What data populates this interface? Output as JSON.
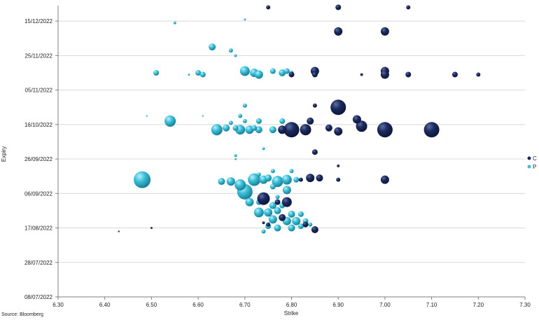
{
  "source_note": "Source: Bloomberg",
  "colors": {
    "C": "#1b2a5e",
    "P": "#3cc0d8",
    "grid": "#d9d9d9",
    "axis": "#7f7f7f"
  },
  "chart_data": {
    "type": "scatter",
    "bubble": true,
    "xlabel": "Strike",
    "ylabel": "Expiry",
    "xlim": [
      6.3,
      7.3
    ],
    "ylim": [
      "2022-07-08",
      "2022-12-24"
    ],
    "x_ticks": [
      "6.30",
      "6.40",
      "6.50",
      "6.60",
      "6.70",
      "6.80",
      "6.90",
      "7.00",
      "7.10",
      "7.20",
      "7.30"
    ],
    "y_ticks": [
      {
        "date": "2022-07-08",
        "label": "08/07/2022"
      },
      {
        "date": "2022-07-28",
        "label": "28/07/2022"
      },
      {
        "date": "2022-08-17",
        "label": "17/08/2022"
      },
      {
        "date": "2022-09-06",
        "label": "06/09/2022"
      },
      {
        "date": "2022-09-26",
        "label": "26/09/2022"
      },
      {
        "date": "2022-10-16",
        "label": "16/10/2022"
      },
      {
        "date": "2022-11-05",
        "label": "05/11/2022"
      },
      {
        "date": "2022-11-25",
        "label": "25/11/2022"
      },
      {
        "date": "2022-12-15",
        "label": "15/12/2022"
      }
    ],
    "grid": "horizontal",
    "legend_position": "right",
    "series": [
      {
        "name": "C",
        "points": [
          {
            "x": 6.75,
            "y": "2022-12-23",
            "s": 3
          },
          {
            "x": 6.9,
            "y": "2022-12-23",
            "s": 4
          },
          {
            "x": 7.05,
            "y": "2022-12-23",
            "s": 3
          },
          {
            "x": 6.9,
            "y": "2022-12-09",
            "s": 6
          },
          {
            "x": 7.0,
            "y": "2022-12-09",
            "s": 6
          },
          {
            "x": 6.8,
            "y": "2022-11-14",
            "s": 4
          },
          {
            "x": 6.85,
            "y": "2022-11-16",
            "s": 6
          },
          {
            "x": 6.85,
            "y": "2022-11-14",
            "s": 4
          },
          {
            "x": 6.95,
            "y": "2022-11-14",
            "s": 2
          },
          {
            "x": 7.0,
            "y": "2022-11-16",
            "s": 6
          },
          {
            "x": 7.0,
            "y": "2022-11-14",
            "s": 6
          },
          {
            "x": 7.05,
            "y": "2022-11-14",
            "s": 4
          },
          {
            "x": 7.15,
            "y": "2022-11-14",
            "s": 4
          },
          {
            "x": 7.2,
            "y": "2022-11-14",
            "s": 3
          },
          {
            "x": 6.85,
            "y": "2022-10-27",
            "s": 3
          },
          {
            "x": 6.9,
            "y": "2022-10-26",
            "s": 11
          },
          {
            "x": 6.84,
            "y": "2022-10-18",
            "s": 5
          },
          {
            "x": 6.94,
            "y": "2022-10-19",
            "s": 6
          },
          {
            "x": 6.95,
            "y": "2022-10-15",
            "s": 8
          },
          {
            "x": 7.0,
            "y": "2022-10-13",
            "s": 11
          },
          {
            "x": 7.1,
            "y": "2022-10-13",
            "s": 11
          },
          {
            "x": 6.8,
            "y": "2022-10-13",
            "s": 11
          },
          {
            "x": 6.78,
            "y": "2022-10-13",
            "s": 6
          },
          {
            "x": 6.83,
            "y": "2022-10-13",
            "s": 8
          },
          {
            "x": 6.88,
            "y": "2022-10-14",
            "s": 5
          },
          {
            "x": 6.9,
            "y": "2022-10-12",
            "s": 6
          },
          {
            "x": 6.85,
            "y": "2022-09-30",
            "s": 4
          },
          {
            "x": 6.9,
            "y": "2022-09-22",
            "s": 2
          },
          {
            "x": 6.84,
            "y": "2022-09-15",
            "s": 6
          },
          {
            "x": 6.86,
            "y": "2022-09-15",
            "s": 5
          },
          {
            "x": 6.9,
            "y": "2022-09-14",
            "s": 3
          },
          {
            "x": 7.0,
            "y": "2022-09-14",
            "s": 6
          },
          {
            "x": 6.82,
            "y": "2022-09-14",
            "s": 3
          },
          {
            "x": 6.74,
            "y": "2022-09-03",
            "s": 9
          },
          {
            "x": 6.79,
            "y": "2022-09-01",
            "s": 7
          },
          {
            "x": 6.77,
            "y": "2022-09-01",
            "s": 4
          },
          {
            "x": 6.78,
            "y": "2022-08-23",
            "s": 5
          },
          {
            "x": 6.83,
            "y": "2022-08-19",
            "s": 4
          },
          {
            "x": 6.85,
            "y": "2022-08-16",
            "s": 5
          },
          {
            "x": 6.75,
            "y": "2022-08-19",
            "s": 3
          },
          {
            "x": 6.74,
            "y": "2022-08-20",
            "s": 2
          },
          {
            "x": 6.5,
            "y": "2022-08-17",
            "s": 1.5
          },
          {
            "x": 6.43,
            "y": "2022-08-15",
            "s": 1.2
          }
        ]
      },
      {
        "name": "P",
        "points": [
          {
            "x": 6.55,
            "y": "2022-12-14",
            "s": 2
          },
          {
            "x": 6.7,
            "y": "2022-12-16",
            "s": 1.5
          },
          {
            "x": 6.63,
            "y": "2022-11-30",
            "s": 5
          },
          {
            "x": 6.67,
            "y": "2022-11-28",
            "s": 3
          },
          {
            "x": 6.68,
            "y": "2022-11-25",
            "s": 2
          },
          {
            "x": 6.51,
            "y": "2022-11-15",
            "s": 4
          },
          {
            "x": 6.58,
            "y": "2022-11-14",
            "s": 1.5
          },
          {
            "x": 6.6,
            "y": "2022-11-15",
            "s": 4
          },
          {
            "x": 6.61,
            "y": "2022-11-14",
            "s": 4
          },
          {
            "x": 6.7,
            "y": "2022-11-16",
            "s": 7
          },
          {
            "x": 6.72,
            "y": "2022-11-15",
            "s": 6
          },
          {
            "x": 6.73,
            "y": "2022-11-14",
            "s": 6
          },
          {
            "x": 6.76,
            "y": "2022-11-16",
            "s": 4
          },
          {
            "x": 6.78,
            "y": "2022-11-15",
            "s": 5
          },
          {
            "x": 6.79,
            "y": "2022-11-16",
            "s": 4
          },
          {
            "x": 6.8,
            "y": "2022-11-15",
            "s": 3
          },
          {
            "x": 6.7,
            "y": "2022-10-27",
            "s": 3
          },
          {
            "x": 6.69,
            "y": "2022-10-21",
            "s": 3
          },
          {
            "x": 6.54,
            "y": "2022-10-18",
            "s": 8
          },
          {
            "x": 6.61,
            "y": "2022-10-21",
            "s": 1.2
          },
          {
            "x": 6.49,
            "y": "2022-10-21",
            "s": 1.2
          },
          {
            "x": 6.7,
            "y": "2022-10-18",
            "s": 3
          },
          {
            "x": 6.67,
            "y": "2022-10-17",
            "s": 3
          },
          {
            "x": 6.73,
            "y": "2022-10-18",
            "s": 4
          },
          {
            "x": 6.78,
            "y": "2022-10-18",
            "s": 4
          },
          {
            "x": 6.66,
            "y": "2022-10-14",
            "s": 5
          },
          {
            "x": 6.68,
            "y": "2022-10-14",
            "s": 4
          },
          {
            "x": 6.72,
            "y": "2022-10-14",
            "s": 4
          },
          {
            "x": 6.64,
            "y": "2022-10-13",
            "s": 8
          },
          {
            "x": 6.69,
            "y": "2022-10-13",
            "s": 7
          },
          {
            "x": 6.71,
            "y": "2022-10-13",
            "s": 6
          },
          {
            "x": 6.73,
            "y": "2022-10-13",
            "s": 5
          },
          {
            "x": 6.76,
            "y": "2022-10-13",
            "s": 5
          },
          {
            "x": 6.78,
            "y": "2022-10-13",
            "s": 3
          },
          {
            "x": 6.74,
            "y": "2022-10-02",
            "s": 2
          },
          {
            "x": 6.68,
            "y": "2022-09-28",
            "s": 2
          },
          {
            "x": 6.68,
            "y": "2022-09-26",
            "s": 1.5
          },
          {
            "x": 6.48,
            "y": "2022-09-14",
            "s": 12
          },
          {
            "x": 6.65,
            "y": "2022-09-13",
            "s": 5
          },
          {
            "x": 6.67,
            "y": "2022-09-13",
            "s": 6
          },
          {
            "x": 6.69,
            "y": "2022-09-11",
            "s": 8
          },
          {
            "x": 6.7,
            "y": "2022-09-07",
            "s": 11
          },
          {
            "x": 6.72,
            "y": "2022-09-14",
            "s": 9
          },
          {
            "x": 6.74,
            "y": "2022-09-14",
            "s": 6
          },
          {
            "x": 6.75,
            "y": "2022-09-15",
            "s": 5
          },
          {
            "x": 6.77,
            "y": "2022-09-13",
            "s": 8
          },
          {
            "x": 6.79,
            "y": "2022-09-14",
            "s": 7
          },
          {
            "x": 6.81,
            "y": "2022-09-14",
            "s": 4
          },
          {
            "x": 6.76,
            "y": "2022-09-10",
            "s": 4
          },
          {
            "x": 6.79,
            "y": "2022-09-08",
            "s": 6
          },
          {
            "x": 6.76,
            "y": "2022-09-19",
            "s": 3
          },
          {
            "x": 6.8,
            "y": "2022-09-19",
            "s": 3
          },
          {
            "x": 6.73,
            "y": "2022-09-17",
            "s": 3
          },
          {
            "x": 6.77,
            "y": "2022-09-04",
            "s": 3
          },
          {
            "x": 6.71,
            "y": "2022-09-01",
            "s": 6
          },
          {
            "x": 6.73,
            "y": "2022-09-01",
            "s": 4
          },
          {
            "x": 6.76,
            "y": "2022-08-30",
            "s": 5
          },
          {
            "x": 6.78,
            "y": "2022-08-30",
            "s": 4
          },
          {
            "x": 6.73,
            "y": "2022-08-26",
            "s": 7
          },
          {
            "x": 6.75,
            "y": "2022-08-26",
            "s": 6
          },
          {
            "x": 6.77,
            "y": "2022-08-27",
            "s": 5
          },
          {
            "x": 6.8,
            "y": "2022-08-25",
            "s": 5
          },
          {
            "x": 6.82,
            "y": "2022-08-25",
            "s": 4
          },
          {
            "x": 6.76,
            "y": "2022-08-22",
            "s": 6
          },
          {
            "x": 6.79,
            "y": "2022-08-21",
            "s": 6
          },
          {
            "x": 6.81,
            "y": "2022-08-21",
            "s": 6
          },
          {
            "x": 6.83,
            "y": "2022-08-21",
            "s": 4
          },
          {
            "x": 6.75,
            "y": "2022-08-18",
            "s": 4
          },
          {
            "x": 6.77,
            "y": "2022-08-17",
            "s": 5
          },
          {
            "x": 6.8,
            "y": "2022-08-17",
            "s": 5
          },
          {
            "x": 6.82,
            "y": "2022-08-18",
            "s": 4
          },
          {
            "x": 6.84,
            "y": "2022-08-19",
            "s": 3
          },
          {
            "x": 6.74,
            "y": "2022-08-15",
            "s": 3
          }
        ]
      }
    ]
  }
}
